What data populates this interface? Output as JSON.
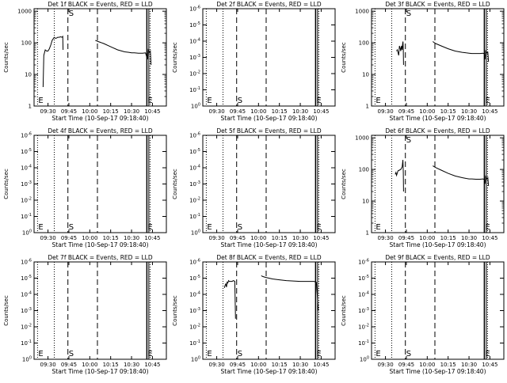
{
  "figure": {
    "background": "#ffffff",
    "ink": "#000000"
  },
  "common": {
    "title_suffix": " BLACK = Events, RED = LLD",
    "xlabel": "Start Time (10-Sep-17 09:18:40)",
    "ylabel": "Counts/sec",
    "x_ticks": [
      {
        "t": 30,
        "label": "09:30"
      },
      {
        "t": 45,
        "label": "09:45"
      },
      {
        "t": 60,
        "label": "10:00"
      },
      {
        "t": 75,
        "label": "10:15"
      },
      {
        "t": 90,
        "label": "10:30"
      },
      {
        "t": 105,
        "label": "10:45"
      }
    ],
    "x_range_minutes_after_0900": [
      20,
      115
    ],
    "markers": [
      {
        "name": "E",
        "label": "E",
        "t": 22.5,
        "style": "dotted"
      },
      {
        "name": "S",
        "label": "S",
        "t": 44.3,
        "style": "dashed"
      },
      {
        "name": "mid",
        "label": "",
        "t": 65.5,
        "style": "dashed"
      },
      {
        "name": "E2",
        "label": "E",
        "t": 101.0,
        "style": "solid"
      },
      {
        "name": "dot2",
        "label": "",
        "t": 34.5,
        "style": "dotted"
      },
      {
        "name": "dot3",
        "label": "",
        "t": 103.3,
        "style": "dotted"
      }
    ],
    "tick_sets": {
      "log": [
        {
          "v": 1,
          "label": "1"
        },
        {
          "v": 10,
          "label": "10"
        },
        {
          "v": 100,
          "label": "100"
        },
        {
          "v": 1000,
          "label": "1000"
        }
      ],
      "exp": [
        {
          "v": 0,
          "base": "10",
          "exp": "0"
        },
        {
          "v": 0.2,
          "base": "10",
          "exp": "-1"
        },
        {
          "v": 0.4,
          "base": "10",
          "exp": "-2"
        },
        {
          "v": 0.6,
          "base": "10",
          "exp": "-3"
        },
        {
          "v": 0.8,
          "base": "10",
          "exp": "-4"
        },
        {
          "v": 1.0,
          "base": "10",
          "exp": "-5"
        },
        {
          "v": 1.2,
          "base": "10",
          "exp": "-6"
        }
      ]
    }
  },
  "chart_data": [
    {
      "type": "line",
      "title": "Det 1f BLACK = Events, RED = LLD",
      "yscale": "log",
      "ylim": [
        1,
        1200
      ],
      "series": [
        {
          "x": [
            26.5,
            27,
            28,
            29,
            30,
            31,
            32,
            33,
            34.5,
            35,
            36,
            37,
            38,
            39,
            40,
            40.6,
            40.8
          ],
          "y": [
            4,
            40,
            60,
            55,
            55,
            65,
            85,
            120,
            150,
            140,
            140,
            150,
            150,
            155,
            150,
            160,
            60
          ]
        },
        {
          "x": [
            64,
            66,
            70,
            75,
            80,
            85,
            88,
            90,
            92,
            95,
            98,
            100,
            101.5,
            102,
            102.5,
            103,
            103.5,
            104
          ],
          "y": [
            120,
            110,
            95,
            75,
            60,
            52,
            50,
            48,
            48,
            47,
            47,
            48,
            30,
            60,
            55,
            50,
            55,
            20
          ]
        }
      ]
    },
    {
      "type": "line",
      "title": "Det 2f BLACK = Events, RED = LLD",
      "yscale": "exp",
      "ylim": [
        0,
        1.2
      ],
      "series": []
    },
    {
      "type": "line",
      "title": "Det 3f BLACK = Events, RED = LLD",
      "yscale": "log",
      "ylim": [
        1,
        1200
      ],
      "series": [
        {
          "x": [
            38,
            38.5,
            39,
            39.5,
            40,
            40.5,
            41,
            41.5,
            42,
            42.3,
            42.6,
            42.8,
            43
          ],
          "y": [
            55,
            60,
            50,
            40,
            80,
            70,
            55,
            80,
            60,
            90,
            110,
            60,
            20
          ]
        },
        {
          "x": [
            64,
            66,
            70,
            75,
            80,
            85,
            88,
            90,
            92,
            95,
            98,
            100,
            101,
            101.5,
            102,
            102.5,
            103,
            103.5,
            104
          ],
          "y": [
            110,
            95,
            80,
            65,
            55,
            50,
            48,
            47,
            46,
            46,
            46,
            47,
            45,
            30,
            55,
            50,
            48,
            50,
            25
          ]
        }
      ]
    },
    {
      "type": "line",
      "title": "Det 4f BLACK = Events, RED = LLD",
      "yscale": "exp",
      "ylim": [
        0,
        1.2
      ],
      "series": []
    },
    {
      "type": "line",
      "title": "Det 5f BLACK = Events, RED = LLD",
      "yscale": "exp",
      "ylim": [
        0,
        1.2
      ],
      "series": []
    },
    {
      "type": "line",
      "title": "Det 6f BLACK = Events, RED = LLD",
      "yscale": "log",
      "ylim": [
        1,
        1200
      ],
      "series": [
        {
          "x": [
            37,
            37.5,
            38,
            39,
            40,
            41,
            42,
            42.5,
            42.8,
            43
          ],
          "y": [
            70,
            80,
            65,
            90,
            95,
            100,
            120,
            200,
            80,
            20
          ]
        },
        {
          "x": [
            64,
            66,
            70,
            75,
            80,
            85,
            88,
            90,
            92,
            95,
            98,
            100,
            101,
            101.5,
            102,
            102.5,
            103,
            103.5,
            104
          ],
          "y": [
            130,
            115,
            95,
            75,
            62,
            55,
            52,
            50,
            50,
            49,
            49,
            50,
            48,
            35,
            60,
            55,
            50,
            55,
            30
          ]
        }
      ]
    },
    {
      "type": "line",
      "title": "Det 7f BLACK = Events, RED = LLD",
      "yscale": "exp",
      "ylim": [
        0,
        1.2
      ],
      "series": []
    },
    {
      "type": "line",
      "title": "Det 8f BLACK = Events, RED = LLD",
      "yscale": "exp",
      "ylim": [
        0,
        1.2
      ],
      "series": [
        {
          "x": [
            35.5,
            36,
            36.5,
            37,
            37.5,
            38,
            38.5,
            39,
            40,
            41,
            42,
            43,
            43.5
          ],
          "y": [
            0.88,
            0.91,
            0.93,
            0.89,
            0.95,
            0.94,
            0.97,
            0.96,
            0.96,
            0.96,
            0.97,
            0.96,
            0.5
          ]
        },
        {
          "x": [
            62,
            63,
            65,
            70,
            75,
            80,
            85,
            90,
            95,
            100,
            101.5,
            102,
            103
          ],
          "y": [
            1.03,
            1.02,
            1.01,
            0.99,
            0.98,
            0.97,
            0.965,
            0.96,
            0.96,
            0.96,
            0.95,
            0.85,
            0.6
          ]
        }
      ]
    },
    {
      "type": "line",
      "title": "Det 9f BLACK = Events, RED = LLD",
      "yscale": "exp",
      "ylim": [
        0,
        1.2
      ],
      "series": []
    }
  ]
}
